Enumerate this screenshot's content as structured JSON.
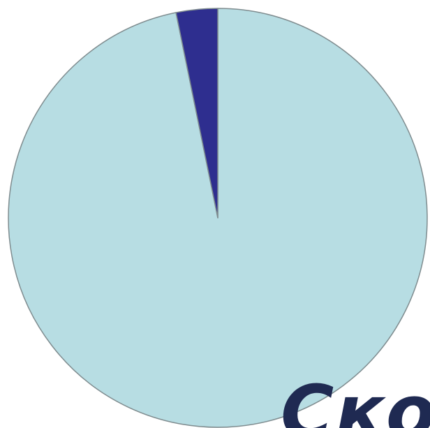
{
  "chart_data": {
    "type": "pie",
    "slices": [
      {
        "value": 96.8,
        "color": "#b7dde3"
      },
      {
        "value": 3.2,
        "color": "#2e2e8f"
      }
    ],
    "start_angle_deg": 0,
    "direction": "clockwise",
    "stroke_color": "#7f8c8f"
  },
  "overlay_text": "Скор"
}
